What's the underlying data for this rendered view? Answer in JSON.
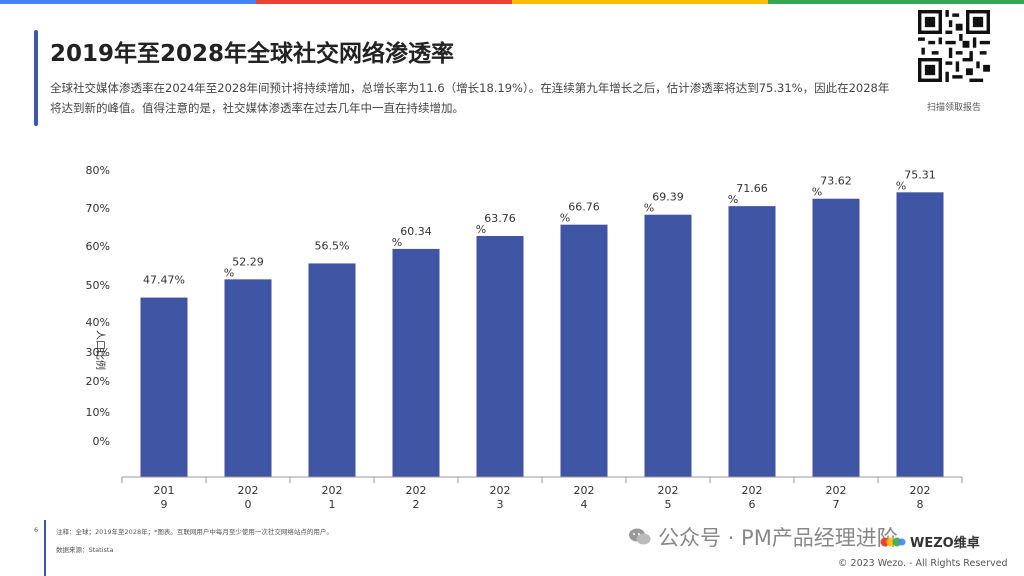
{
  "title": "2019年至2028年全球社交网络渗透率",
  "subtitle": "全球社交媒体渗透率在2024年至2028年间预计将持续增加，总增长率为11.6（增长18.19%）。在连续第九年增长之后，估计渗透率将达到75.31%，因此在2028年 将达到新的峰值。值得注意的是，社交媒体渗透率在过去几年中一直在持续增加。",
  "qr_caption": "扫描领取报告",
  "page_number": "6",
  "footnote": "注释：全球；2019年至2028年；*图表。互联网用户中每月至少使用一次社交网络站点的用户。",
  "source": "数据来源：Statista",
  "wechat_text": "公众号 · PM产品经理进阶",
  "brand_text": "WEZO维卓",
  "copyright": "© 2023 Wezo. - All Rights Reserved",
  "colors": {
    "bar": "#3f55a4",
    "accent": "#3a55b4",
    "topbar": [
      "#4285f4",
      "#ea4335",
      "#fbbc05",
      "#34a853"
    ]
  },
  "chart_data": {
    "type": "bar",
    "categories": [
      "2019",
      "2020",
      "2021",
      "2022",
      "2023",
      "2024",
      "2025",
      "2026",
      "2027",
      "2028"
    ],
    "category_tick_labels": [
      [
        "201",
        "9"
      ],
      [
        "202",
        "0"
      ],
      [
        "202",
        "1"
      ],
      [
        "202",
        "2"
      ],
      [
        "202",
        "3"
      ],
      [
        "202",
        "4"
      ],
      [
        "202",
        "5"
      ],
      [
        "202",
        "6"
      ],
      [
        "202",
        "7"
      ],
      [
        "202",
        "8"
      ]
    ],
    "values": [
      47.47,
      52.29,
      56.5,
      60.34,
      63.76,
      66.76,
      69.39,
      71.66,
      73.62,
      75.31
    ],
    "data_labels": [
      [
        "47.47%"
      ],
      [
        "52.29",
        "%"
      ],
      [
        "56.5%"
      ],
      [
        "60.34",
        "%"
      ],
      [
        "63.76",
        "%"
      ],
      [
        "66.76",
        "%"
      ],
      [
        "69.39",
        "%"
      ],
      [
        "71.66",
        "%"
      ],
      [
        "73.62",
        "%"
      ],
      [
        "75.31",
        "%"
      ]
    ],
    "ylabel": "人口比例",
    "y_tick_labels": [
      "0%",
      "10%",
      "20%",
      "30%",
      "40%",
      "50%",
      "60%",
      "70%",
      "80%"
    ],
    "y_tick_values": [
      0,
      10,
      20,
      30,
      40,
      50,
      60,
      70,
      80
    ],
    "grid": false
  }
}
